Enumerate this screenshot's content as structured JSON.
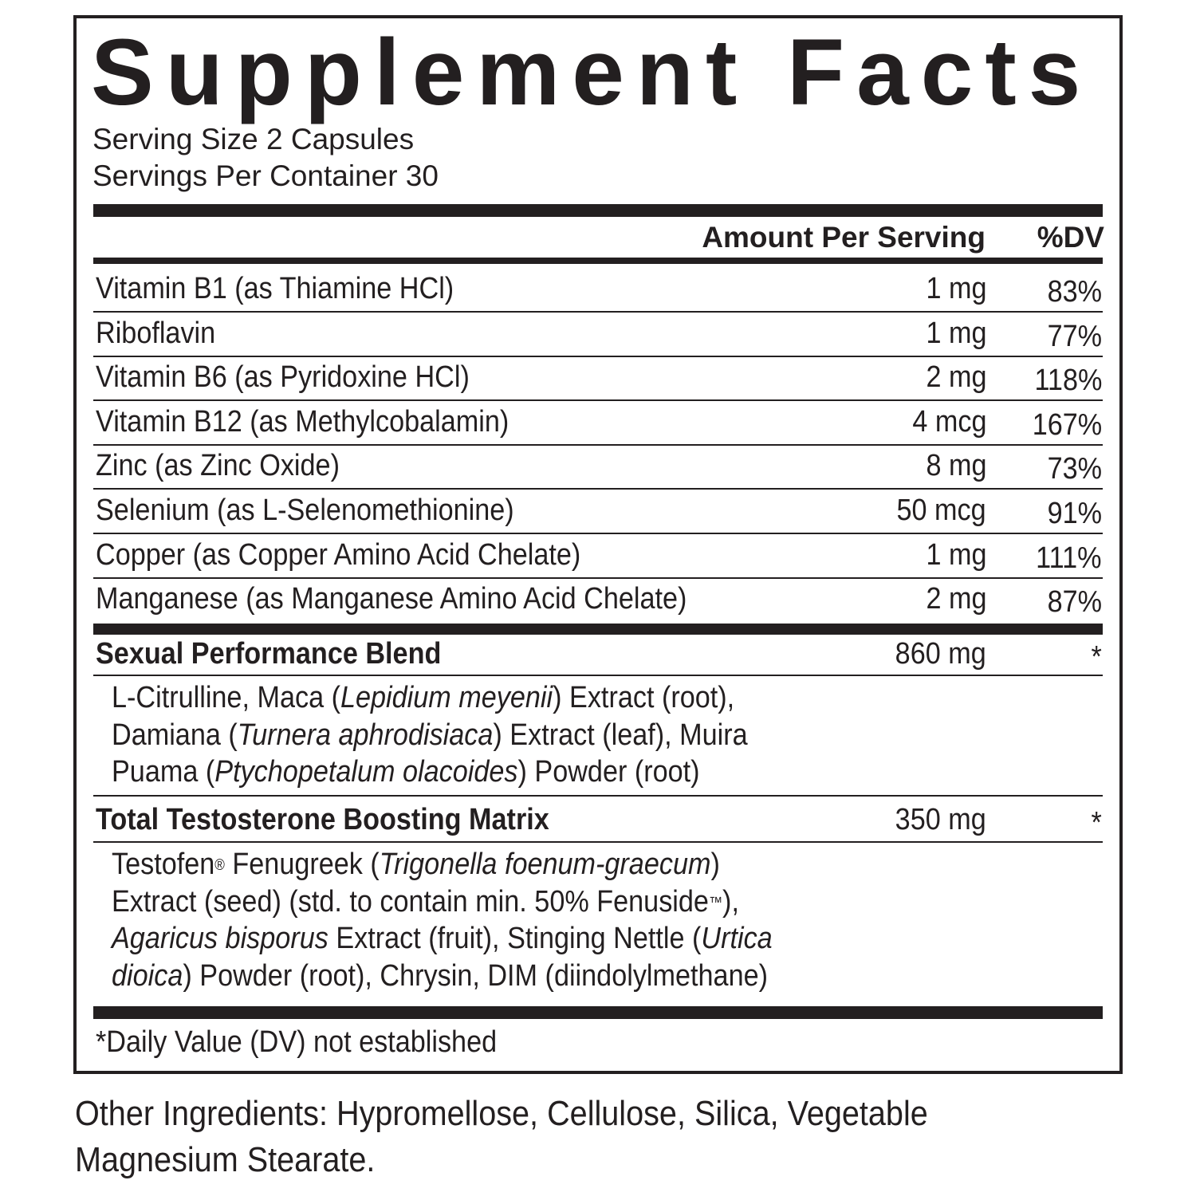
{
  "title": "Supplement Facts",
  "serving_size": "Serving Size 2 Capsules",
  "servings_per_container": "Servings Per Container 30",
  "header": {
    "amount": "Amount Per Serving",
    "dv": "%DV"
  },
  "nutrients": [
    {
      "name": "Vitamin B1 (as Thiamine HCl)",
      "amount": "1 mg",
      "dv": "83%"
    },
    {
      "name": "Riboflavin",
      "amount": "1 mg",
      "dv": "77%"
    },
    {
      "name": "Vitamin B6 (as Pyridoxine HCl)",
      "amount": "2 mg",
      "dv": "118%"
    },
    {
      "name": "Vitamin B12 (as Methylcobalamin)",
      "amount": "4 mcg",
      "dv": "167%"
    },
    {
      "name": "Zinc (as Zinc Oxide)",
      "amount": "8 mg",
      "dv": "73%"
    },
    {
      "name": "Selenium (as L-Selenomethionine)",
      "amount": "50 mcg",
      "dv": "91%"
    },
    {
      "name": "Copper (as Copper Amino Acid Chelate)",
      "amount": "1 mg",
      "dv": "111%"
    },
    {
      "name": "Manganese (as Manganese Amino Acid Chelate)",
      "amount": "2 mg",
      "dv": "87%"
    }
  ],
  "blends": [
    {
      "name": "Sexual Performance Blend",
      "amount": "860 mg",
      "dv": "*",
      "lines": [
        [
          {
            "t": "L-Citrulline, Maca ("
          },
          {
            "t": "Lepidium meyenii",
            "i": true
          },
          {
            "t": ") Extract (root),"
          }
        ],
        [
          {
            "t": "Damiana ("
          },
          {
            "t": "Turnera aphrodisiaca",
            "i": true
          },
          {
            "t": ") Extract (leaf), Muira"
          }
        ],
        [
          {
            "t": "Puama ("
          },
          {
            "t": "Ptychopetalum olacoides",
            "i": true
          },
          {
            "t": ") Powder (root)"
          }
        ]
      ]
    },
    {
      "name": "Total Testosterone Boosting Matrix",
      "amount": "350 mg",
      "dv": "*",
      "lines": [
        [
          {
            "t": "Testofen"
          },
          {
            "t": "®",
            "s": true
          },
          {
            "t": " Fenugreek ("
          },
          {
            "t": "Trigonella foenum-graecum",
            "i": true
          },
          {
            "t": ")"
          }
        ],
        [
          {
            "t": "Extract (seed) (std. to contain min. 50% Fenuside"
          },
          {
            "t": "™",
            "s": true
          },
          {
            "t": "),"
          }
        ],
        [
          {
            "t": "Agaricus bisporus",
            "i": true
          },
          {
            "t": " Extract (fruit), Stinging Nettle ("
          },
          {
            "t": "Urtica",
            "i": true
          }
        ],
        [
          {
            "t": "dioica",
            "i": true
          },
          {
            "t": ") Powder (root), Chrysin, DIM (diindolylmethane)"
          }
        ]
      ]
    }
  ],
  "footnote": "*Daily Value (DV) not established",
  "other_ingredients": [
    "Other Ingredients: Hypromellose, Cellulose, Silica, Vegetable",
    "Magnesium Stearate."
  ]
}
